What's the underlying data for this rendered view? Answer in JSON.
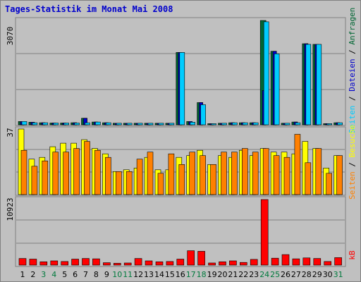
{
  "title": "Tages-Statistik im Monat Mai 2008",
  "colors": {
    "hits": "#006633",
    "files": "#0000cc",
    "pages": "#00ccff",
    "visits": "#ffff00",
    "sites": "#ff8000",
    "kbytes": "#ff0000",
    "weekend_day_label": "#007a3d",
    "weekday_label": "#000000"
  },
  "chart_data": [
    {
      "type": "bar",
      "name": "requests-panel",
      "ylabel": "3070",
      "ymax": 3070,
      "legend": [
        {
          "text": "Anfragen",
          "color": "#006633"
        },
        {
          "text": "Dateien",
          "color": "#0000cc"
        },
        {
          "text": "Seiten",
          "color": "#00ccff"
        }
      ],
      "series": [
        {
          "name": "Anfragen",
          "values": [
            97,
            76,
            61,
            52,
            52,
            61,
            192,
            81,
            61,
            46,
            46,
            46,
            46,
            46,
            46,
            2128,
            97,
            653,
            33,
            46,
            61,
            61,
            61,
            3070,
            2164,
            46,
            81,
            2386,
            2366,
            33,
            61
          ]
        },
        {
          "name": "Dateien",
          "values": [
            97,
            76,
            61,
            52,
            52,
            61,
            192,
            81,
            61,
            46,
            46,
            46,
            46,
            46,
            46,
            2128,
            97,
            653,
            33,
            46,
            61,
            61,
            61,
            1010,
            2164,
            46,
            81,
            2386,
            2366,
            33,
            61
          ]
        },
        {
          "name": "Seiten",
          "values": [
            97,
            61,
            61,
            52,
            52,
            52,
            61,
            81,
            61,
            46,
            46,
            46,
            46,
            46,
            46,
            2128,
            76,
            591,
            33,
            46,
            61,
            61,
            61,
            3030,
            2088,
            46,
            61,
            2366,
            2366,
            33,
            61
          ]
        }
      ]
    },
    {
      "type": "bar",
      "name": "visits-panel",
      "ylabel": "37",
      "ymax": 37,
      "legend": [
        {
          "text": "Besuche",
          "color": "#ffff00"
        },
        {
          "text": "Seiten",
          "color": "#ff8000"
        }
      ],
      "series": [
        {
          "name": "Besuche",
          "values": [
            37,
            20,
            21,
            27,
            29,
            29,
            31,
            26,
            23,
            13,
            14,
            15,
            21,
            14,
            14,
            21,
            22,
            25,
            17,
            22,
            21,
            25,
            22,
            26,
            24,
            24,
            23,
            30,
            26,
            15,
            22
          ]
        },
        {
          "name": "Seiten",
          "values": [
            25,
            16,
            19,
            24,
            24,
            26,
            30,
            25,
            21,
            13,
            13,
            20,
            24,
            12,
            23,
            17,
            24,
            22,
            17,
            24,
            24,
            26,
            24,
            26,
            22,
            21,
            34,
            18,
            26,
            12,
            22
          ]
        }
      ]
    },
    {
      "type": "bar",
      "name": "kbytes-panel",
      "ylabel": "10923",
      "ymax": 10923,
      "legend": [
        {
          "text": "kB",
          "color": "#ff0000"
        }
      ],
      "series": [
        {
          "name": "kB",
          "values": [
            1100,
            1000,
            550,
            700,
            600,
            1000,
            1100,
            1050,
            400,
            300,
            350,
            1100,
            700,
            550,
            600,
            1000,
            2400,
            2300,
            350,
            550,
            700,
            450,
            950,
            10923,
            1150,
            1750,
            1050,
            1200,
            1100,
            600,
            1250
          ]
        }
      ]
    }
  ],
  "x_axis": {
    "days": [
      "1",
      "2",
      "3",
      "4",
      "5",
      "6",
      "7",
      "8",
      "9",
      "10",
      "11",
      "12",
      "13",
      "14",
      "15",
      "16",
      "17",
      "18",
      "19",
      "20",
      "21",
      "22",
      "23",
      "24",
      "25",
      "26",
      "27",
      "28",
      "29",
      "30",
      "31"
    ],
    "weekend_days": [
      3,
      4,
      10,
      11,
      17,
      18,
      24,
      25,
      31
    ]
  }
}
